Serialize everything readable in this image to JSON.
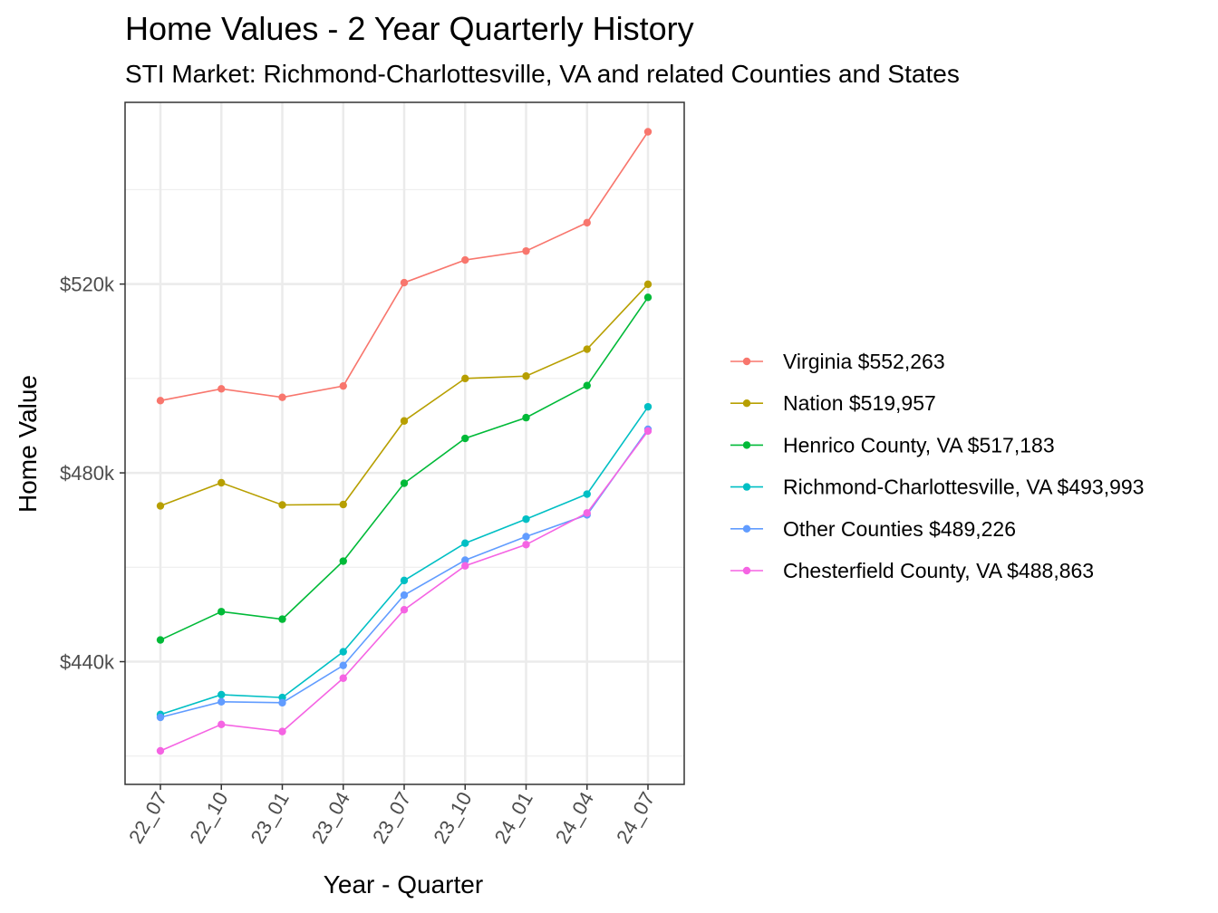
{
  "chart_data": {
    "type": "line",
    "title": "Home Values - 2 Year Quarterly History",
    "subtitle": "STI Market: Richmond-Charlottesville, VA and related Counties and States",
    "xlabel": "Year - Quarter",
    "ylabel": "Home Value",
    "categories": [
      "22_07",
      "22_10",
      "23_01",
      "23_04",
      "23_07",
      "23_10",
      "24_01",
      "24_04",
      "24_07"
    ],
    "ylim": [
      414000,
      558500
    ],
    "y_ticks": [
      {
        "value": 440000,
        "label": "$440k"
      },
      {
        "value": 480000,
        "label": "$480k"
      },
      {
        "value": 520000,
        "label": "$520k"
      }
    ],
    "grid": true,
    "legend_position": "right",
    "series": [
      {
        "name": "Virginia $552,263",
        "color": "#F8766D",
        "values": [
          495300,
          497800,
          496000,
          498400,
          520300,
          525100,
          527000,
          533000,
          552263
        ]
      },
      {
        "name": "Nation $519,957",
        "color": "#B79F00",
        "values": [
          473000,
          477900,
          473200,
          473300,
          491000,
          500000,
          500500,
          506200,
          519957
        ]
      },
      {
        "name": "Henrico County, VA $517,183",
        "color": "#00BA38",
        "values": [
          444600,
          450600,
          449000,
          461300,
          477800,
          487300,
          491700,
          498500,
          517183
        ]
      },
      {
        "name": "Richmond-Charlottesville, VA $493,993",
        "color": "#00BFC4",
        "values": [
          428800,
          433000,
          432400,
          442100,
          457200,
          465100,
          470200,
          475500,
          493993
        ]
      },
      {
        "name": "Other Counties $489,226",
        "color": "#619CFF",
        "values": [
          428200,
          431500,
          431300,
          439200,
          454100,
          461500,
          466500,
          471100,
          489226
        ]
      },
      {
        "name": "Chesterfield County, VA $488,863",
        "color": "#F564E3",
        "values": [
          421100,
          426700,
          425200,
          436500,
          451000,
          460300,
          464800,
          471500,
          488863
        ]
      }
    ]
  }
}
